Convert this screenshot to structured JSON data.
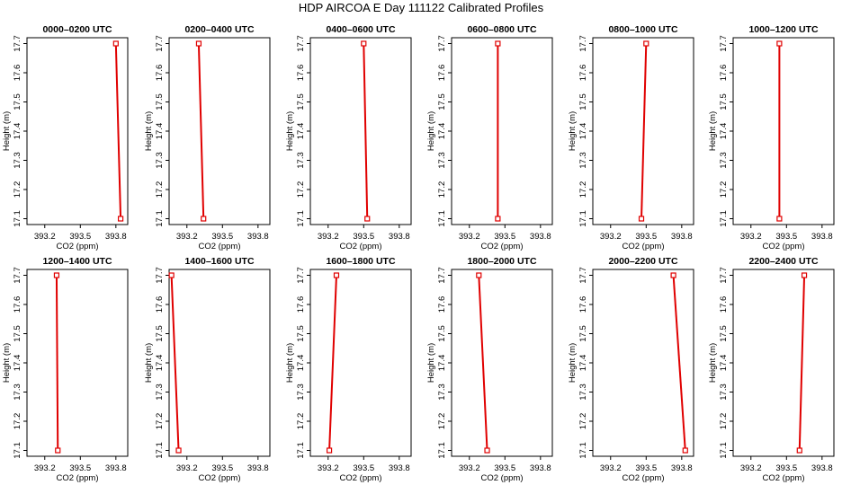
{
  "title": "HDP AIRCOA E  Day 111122  Calibrated Profiles",
  "style": {
    "line_color": "#e00000",
    "marker_color": "#e00000",
    "axis_color": "#000000"
  },
  "chart_data": [
    {
      "type": "line",
      "panel_title": "0000–0200 UTC",
      "xlabel": "CO2 (ppm)",
      "ylabel": "Height (m)",
      "xlim": [
        393.05,
        393.9
      ],
      "ylim": [
        17.08,
        17.72
      ],
      "x_ticks": [
        "393.2",
        "393.5",
        "393.8"
      ],
      "x_tick_values": [
        393.2,
        393.5,
        393.8
      ],
      "y_ticks": [
        "17.1",
        "17.2",
        "17.3",
        "17.4",
        "17.5",
        "17.6",
        "17.7"
      ],
      "y_tick_values": [
        17.1,
        17.2,
        17.3,
        17.4,
        17.5,
        17.6,
        17.7
      ],
      "points": [
        {
          "x": 393.8,
          "y": 17.7
        },
        {
          "x": 393.84,
          "y": 17.1
        }
      ],
      "grid": false
    },
    {
      "type": "line",
      "panel_title": "0200–0400 UTC",
      "xlabel": "CO2 (ppm)",
      "ylabel": "Height (m)",
      "xlim": [
        393.05,
        393.9
      ],
      "ylim": [
        17.08,
        17.72
      ],
      "x_ticks": [
        "393.2",
        "393.5",
        "393.8"
      ],
      "x_tick_values": [
        393.2,
        393.5,
        393.8
      ],
      "y_ticks": [
        "17.1",
        "17.2",
        "17.3",
        "17.4",
        "17.5",
        "17.6",
        "17.7"
      ],
      "y_tick_values": [
        17.1,
        17.2,
        17.3,
        17.4,
        17.5,
        17.6,
        17.7
      ],
      "points": [
        {
          "x": 393.3,
          "y": 17.7
        },
        {
          "x": 393.34,
          "y": 17.1
        }
      ],
      "grid": false
    },
    {
      "type": "line",
      "panel_title": "0400–0600 UTC",
      "xlabel": "CO2 (ppm)",
      "ylabel": "Height (m)",
      "xlim": [
        393.05,
        393.9
      ],
      "ylim": [
        17.08,
        17.72
      ],
      "x_ticks": [
        "393.2",
        "393.5",
        "393.8"
      ],
      "x_tick_values": [
        393.2,
        393.5,
        393.8
      ],
      "y_ticks": [
        "17.1",
        "17.2",
        "17.3",
        "17.4",
        "17.5",
        "17.6",
        "17.7"
      ],
      "y_tick_values": [
        17.1,
        17.2,
        17.3,
        17.4,
        17.5,
        17.6,
        17.7
      ],
      "points": [
        {
          "x": 393.5,
          "y": 17.7
        },
        {
          "x": 393.53,
          "y": 17.1
        }
      ],
      "grid": false
    },
    {
      "type": "line",
      "panel_title": "0600–0800 UTC",
      "xlabel": "CO2 (ppm)",
      "ylabel": "Height (m)",
      "xlim": [
        393.05,
        393.9
      ],
      "ylim": [
        17.08,
        17.72
      ],
      "x_ticks": [
        "393.2",
        "393.5",
        "393.8"
      ],
      "x_tick_values": [
        393.2,
        393.5,
        393.8
      ],
      "y_ticks": [
        "17.1",
        "17.2",
        "17.3",
        "17.4",
        "17.5",
        "17.6",
        "17.7"
      ],
      "y_tick_values": [
        17.1,
        17.2,
        17.3,
        17.4,
        17.5,
        17.6,
        17.7
      ],
      "points": [
        {
          "x": 393.44,
          "y": 17.7
        },
        {
          "x": 393.44,
          "y": 17.1
        }
      ],
      "grid": false
    },
    {
      "type": "line",
      "panel_title": "0800–1000 UTC",
      "xlabel": "CO2 (ppm)",
      "ylabel": "Height (m)",
      "xlim": [
        393.05,
        393.9
      ],
      "ylim": [
        17.08,
        17.72
      ],
      "x_ticks": [
        "393.2",
        "393.5",
        "393.8"
      ],
      "x_tick_values": [
        393.2,
        393.5,
        393.8
      ],
      "y_ticks": [
        "17.1",
        "17.2",
        "17.3",
        "17.4",
        "17.5",
        "17.6",
        "17.7"
      ],
      "y_tick_values": [
        17.1,
        17.2,
        17.3,
        17.4,
        17.5,
        17.6,
        17.7
      ],
      "points": [
        {
          "x": 393.5,
          "y": 17.7
        },
        {
          "x": 393.46,
          "y": 17.1
        }
      ],
      "grid": false
    },
    {
      "type": "line",
      "panel_title": "1000–1200 UTC",
      "xlabel": "CO2 (ppm)",
      "ylabel": "Height (m)",
      "xlim": [
        393.05,
        393.9
      ],
      "ylim": [
        17.08,
        17.72
      ],
      "x_ticks": [
        "393.2",
        "393.5",
        "393.8"
      ],
      "x_tick_values": [
        393.2,
        393.5,
        393.8
      ],
      "y_ticks": [
        "17.1",
        "17.2",
        "17.3",
        "17.4",
        "17.5",
        "17.6",
        "17.7"
      ],
      "y_tick_values": [
        17.1,
        17.2,
        17.3,
        17.4,
        17.5,
        17.6,
        17.7
      ],
      "points": [
        {
          "x": 393.44,
          "y": 17.7
        },
        {
          "x": 393.44,
          "y": 17.1
        }
      ],
      "grid": false
    },
    {
      "type": "line",
      "panel_title": "1200–1400 UTC",
      "xlabel": "CO2 (ppm)",
      "ylabel": "Height (m)",
      "xlim": [
        393.05,
        393.9
      ],
      "ylim": [
        17.08,
        17.72
      ],
      "x_ticks": [
        "393.2",
        "393.5",
        "393.8"
      ],
      "x_tick_values": [
        393.2,
        393.5,
        393.8
      ],
      "y_ticks": [
        "17.1",
        "17.2",
        "17.3",
        "17.4",
        "17.5",
        "17.6",
        "17.7"
      ],
      "y_tick_values": [
        17.1,
        17.2,
        17.3,
        17.4,
        17.5,
        17.6,
        17.7
      ],
      "points": [
        {
          "x": 393.3,
          "y": 17.7
        },
        {
          "x": 393.31,
          "y": 17.1
        }
      ],
      "grid": false
    },
    {
      "type": "line",
      "panel_title": "1400–1600 UTC",
      "xlabel": "CO2 (ppm)",
      "ylabel": "Height (m)",
      "xlim": [
        393.05,
        393.9
      ],
      "ylim": [
        17.08,
        17.72
      ],
      "x_ticks": [
        "393.2",
        "393.5",
        "393.8"
      ],
      "x_tick_values": [
        393.2,
        393.5,
        393.8
      ],
      "y_ticks": [
        "17.1",
        "17.2",
        "17.3",
        "17.4",
        "17.5",
        "17.6",
        "17.7"
      ],
      "y_tick_values": [
        17.1,
        17.2,
        17.3,
        17.4,
        17.5,
        17.6,
        17.7
      ],
      "points": [
        {
          "x": 393.07,
          "y": 17.7
        },
        {
          "x": 393.13,
          "y": 17.1
        }
      ],
      "grid": false
    },
    {
      "type": "line",
      "panel_title": "1600–1800 UTC",
      "xlabel": "CO2 (ppm)",
      "ylabel": "Height (m)",
      "xlim": [
        393.05,
        393.9
      ],
      "ylim": [
        17.08,
        17.72
      ],
      "x_ticks": [
        "393.2",
        "393.5",
        "393.8"
      ],
      "x_tick_values": [
        393.2,
        393.5,
        393.8
      ],
      "y_ticks": [
        "17.1",
        "17.2",
        "17.3",
        "17.4",
        "17.5",
        "17.6",
        "17.7"
      ],
      "y_tick_values": [
        17.1,
        17.2,
        17.3,
        17.4,
        17.5,
        17.6,
        17.7
      ],
      "points": [
        {
          "x": 393.27,
          "y": 17.7
        },
        {
          "x": 393.21,
          "y": 17.1
        }
      ],
      "grid": false
    },
    {
      "type": "line",
      "panel_title": "1800–2000 UTC",
      "xlabel": "CO2 (ppm)",
      "ylabel": "Height (m)",
      "xlim": [
        393.05,
        393.9
      ],
      "ylim": [
        17.08,
        17.72
      ],
      "x_ticks": [
        "393.2",
        "393.5",
        "393.8"
      ],
      "x_tick_values": [
        393.2,
        393.5,
        393.8
      ],
      "y_ticks": [
        "17.1",
        "17.2",
        "17.3",
        "17.4",
        "17.5",
        "17.6",
        "17.7"
      ],
      "y_tick_values": [
        17.1,
        17.2,
        17.3,
        17.4,
        17.5,
        17.6,
        17.7
      ],
      "points": [
        {
          "x": 393.28,
          "y": 17.7
        },
        {
          "x": 393.35,
          "y": 17.1
        }
      ],
      "grid": false
    },
    {
      "type": "line",
      "panel_title": "2000–2200 UTC",
      "xlabel": "CO2 (ppm)",
      "ylabel": "Height (m)",
      "xlim": [
        393.05,
        393.9
      ],
      "ylim": [
        17.08,
        17.72
      ],
      "x_ticks": [
        "393.2",
        "393.5",
        "393.8"
      ],
      "x_tick_values": [
        393.2,
        393.5,
        393.8
      ],
      "y_ticks": [
        "17.1",
        "17.2",
        "17.3",
        "17.4",
        "17.5",
        "17.6",
        "17.7"
      ],
      "y_tick_values": [
        17.1,
        17.2,
        17.3,
        17.4,
        17.5,
        17.6,
        17.7
      ],
      "points": [
        {
          "x": 393.73,
          "y": 17.7
        },
        {
          "x": 393.83,
          "y": 17.1
        }
      ],
      "grid": false
    },
    {
      "type": "line",
      "panel_title": "2200–2400 UTC",
      "xlabel": "CO2 (ppm)",
      "ylabel": "Height (m)",
      "xlim": [
        393.05,
        393.9
      ],
      "ylim": [
        17.08,
        17.72
      ],
      "x_ticks": [
        "393.2",
        "393.5",
        "393.8"
      ],
      "x_tick_values": [
        393.2,
        393.5,
        393.8
      ],
      "y_ticks": [
        "17.1",
        "17.2",
        "17.3",
        "17.4",
        "17.5",
        "17.6",
        "17.7"
      ],
      "y_tick_values": [
        17.1,
        17.2,
        17.3,
        17.4,
        17.5,
        17.6,
        17.7
      ],
      "points": [
        {
          "x": 393.65,
          "y": 17.7
        },
        {
          "x": 393.61,
          "y": 17.1
        }
      ],
      "grid": false
    }
  ]
}
